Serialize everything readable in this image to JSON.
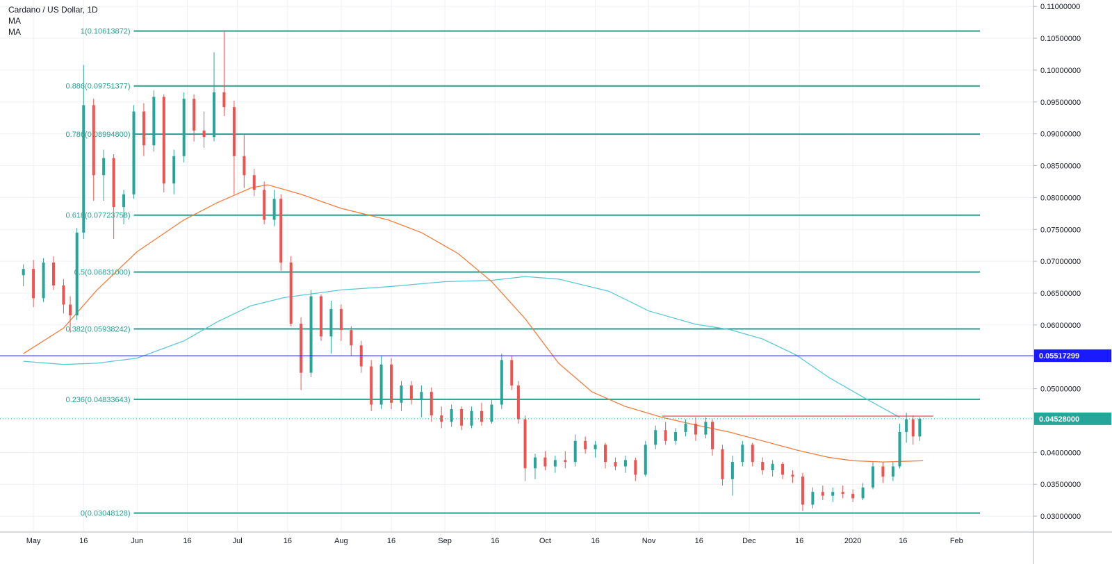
{
  "legend": {
    "title": "Cardano / US Dollar, 1D",
    "ma1": "MA",
    "ma2": "MA"
  },
  "colors": {
    "grid": "#eef0f4",
    "fib": "#2a9d8f",
    "bull": "#26a69a",
    "bear": "#ef5350",
    "ma_fast": "#f57c3b",
    "ma_slow": "#5bc8d8",
    "support": "#1a1aff",
    "resistance": "#e53935"
  },
  "chart_data": {
    "type": "candlestick",
    "title": "Cardano / US Dollar, 1D",
    "ylim": [
      0.0275,
      0.111
    ],
    "y_ticks": [
      "0.11000000",
      "0.10500000",
      "0.10000000",
      "0.09500000",
      "0.09000000",
      "0.08500000",
      "0.08000000",
      "0.07500000",
      "0.07000000",
      "0.06500000",
      "0.06000000",
      "0.05500000",
      "0.05000000",
      "0.04000000",
      "0.03500000",
      "0.03000000"
    ],
    "x_ticks": [
      {
        "label": "May",
        "date": "2019-05-01"
      },
      {
        "label": "16",
        "date": "2019-05-16"
      },
      {
        "label": "Jun",
        "date": "2019-06-01"
      },
      {
        "label": "16",
        "date": "2019-06-16"
      },
      {
        "label": "Jul",
        "date": "2019-07-01"
      },
      {
        "label": "16",
        "date": "2019-07-16"
      },
      {
        "label": "Aug",
        "date": "2019-08-01"
      },
      {
        "label": "16",
        "date": "2019-08-16"
      },
      {
        "label": "Sep",
        "date": "2019-09-01"
      },
      {
        "label": "16",
        "date": "2019-09-16"
      },
      {
        "label": "Oct",
        "date": "2019-10-01"
      },
      {
        "label": "16",
        "date": "2019-10-16"
      },
      {
        "label": "Nov",
        "date": "2019-11-01"
      },
      {
        "label": "16",
        "date": "2019-11-16"
      },
      {
        "label": "Dec",
        "date": "2019-12-01"
      },
      {
        "label": "16",
        "date": "2019-12-16"
      },
      {
        "label": "2020",
        "date": "2020-01-01"
      },
      {
        "label": "16",
        "date": "2020-01-16"
      },
      {
        "label": "Feb",
        "date": "2020-02-01"
      }
    ],
    "fib_levels": [
      {
        "label": "1(0.10613872)",
        "value": 0.10613872
      },
      {
        "label": "0.886(0.09751377)",
        "value": 0.09751377
      },
      {
        "label": "0.786(0.08994800)",
        "value": 0.089948
      },
      {
        "label": "0.618(0.07723758)",
        "value": 0.07723758
      },
      {
        "label": "0.5(0.06831000)",
        "value": 0.06831
      },
      {
        "label": "0.382(0.05938242)",
        "value": 0.05938242
      },
      {
        "label": "0.236(0.04833643)",
        "value": 0.04833643
      },
      {
        "label": "0(0.03048128)",
        "value": 0.03048128
      }
    ],
    "support_line": {
      "value": 0.05517299,
      "label": "0.05517299"
    },
    "last_price": {
      "value": 0.04528,
      "label": "0.04528000"
    },
    "resistance_segment": {
      "value": 0.0457,
      "x_start": "2019-11-05",
      "x_end": "2020-01-25"
    },
    "ma_fast": [
      [
        "2019-04-28",
        0.0555
      ],
      [
        "2019-05-10",
        0.0595
      ],
      [
        "2019-05-20",
        0.0655
      ],
      [
        "2019-06-01",
        0.0715
      ],
      [
        "2019-06-15",
        0.0765
      ],
      [
        "2019-06-25",
        0.0792
      ],
      [
        "2019-07-05",
        0.0815
      ],
      [
        "2019-07-10",
        0.082
      ],
      [
        "2019-07-20",
        0.0805
      ],
      [
        "2019-08-01",
        0.0783
      ],
      [
        "2019-08-15",
        0.0765
      ],
      [
        "2019-08-25",
        0.0745
      ],
      [
        "2019-09-05",
        0.0712
      ],
      [
        "2019-09-15",
        0.0668
      ],
      [
        "2019-09-25",
        0.061
      ],
      [
        "2019-10-05",
        0.054
      ],
      [
        "2019-10-15",
        0.0495
      ],
      [
        "2019-10-25",
        0.0472
      ],
      [
        "2019-11-05",
        0.0455
      ],
      [
        "2019-11-15",
        0.0443
      ],
      [
        "2019-11-25",
        0.0432
      ],
      [
        "2019-12-05",
        0.0418
      ],
      [
        "2019-12-15",
        0.0404
      ],
      [
        "2019-12-25",
        0.0392
      ],
      [
        "2020-01-01",
        0.0387
      ],
      [
        "2020-01-10",
        0.0385
      ],
      [
        "2020-01-22",
        0.0387
      ]
    ],
    "ma_slow": [
      [
        "2019-04-28",
        0.0543
      ],
      [
        "2019-05-10",
        0.0538
      ],
      [
        "2019-05-20",
        0.054
      ],
      [
        "2019-06-01",
        0.0548
      ],
      [
        "2019-06-15",
        0.0575
      ],
      [
        "2019-06-25",
        0.0605
      ],
      [
        "2019-07-05",
        0.063
      ],
      [
        "2019-07-15",
        0.0643
      ],
      [
        "2019-08-01",
        0.0655
      ],
      [
        "2019-08-15",
        0.066
      ],
      [
        "2019-09-01",
        0.0668
      ],
      [
        "2019-09-15",
        0.067
      ],
      [
        "2019-09-25",
        0.0676
      ],
      [
        "2019-10-05",
        0.0672
      ],
      [
        "2019-10-20",
        0.0653
      ],
      [
        "2019-11-01",
        0.0622
      ],
      [
        "2019-11-15",
        0.0601
      ],
      [
        "2019-11-25",
        0.0593
      ],
      [
        "2019-12-05",
        0.0578
      ],
      [
        "2019-12-15",
        0.0553
      ],
      [
        "2019-12-25",
        0.0517
      ],
      [
        "2020-01-05",
        0.0484
      ],
      [
        "2020-01-15",
        0.0455
      ]
    ],
    "candles": [
      {
        "d": "2019-04-28",
        "o": 0.0678,
        "h": 0.0695,
        "l": 0.0661,
        "c": 0.0688
      },
      {
        "d": "2019-05-01",
        "o": 0.0688,
        "h": 0.0702,
        "l": 0.0628,
        "c": 0.0642
      },
      {
        "d": "2019-05-04",
        "o": 0.0642,
        "h": 0.0705,
        "l": 0.0636,
        "c": 0.0698
      },
      {
        "d": "2019-05-07",
        "o": 0.0698,
        "h": 0.0708,
        "l": 0.0655,
        "c": 0.0662
      },
      {
        "d": "2019-05-10",
        "o": 0.0662,
        "h": 0.0672,
        "l": 0.0618,
        "c": 0.0632
      },
      {
        "d": "2019-05-12",
        "o": 0.0632,
        "h": 0.0645,
        "l": 0.0588,
        "c": 0.0615
      },
      {
        "d": "2019-05-14",
        "o": 0.0615,
        "h": 0.0752,
        "l": 0.0608,
        "c": 0.0745
      },
      {
        "d": "2019-05-16",
        "o": 0.0745,
        "h": 0.1008,
        "l": 0.0735,
        "c": 0.0945
      },
      {
        "d": "2019-05-19",
        "o": 0.0945,
        "h": 0.0955,
        "l": 0.0795,
        "c": 0.0835
      },
      {
        "d": "2019-05-22",
        "o": 0.0835,
        "h": 0.0875,
        "l": 0.0795,
        "c": 0.0862
      },
      {
        "d": "2019-05-25",
        "o": 0.0862,
        "h": 0.0868,
        "l": 0.0735,
        "c": 0.0785
      },
      {
        "d": "2019-05-28",
        "o": 0.0785,
        "h": 0.0812,
        "l": 0.0758,
        "c": 0.0805
      },
      {
        "d": "2019-05-31",
        "o": 0.0805,
        "h": 0.0945,
        "l": 0.0798,
        "c": 0.0935
      },
      {
        "d": "2019-06-03",
        "o": 0.0935,
        "h": 0.0948,
        "l": 0.0865,
        "c": 0.0882
      },
      {
        "d": "2019-06-06",
        "o": 0.0882,
        "h": 0.0968,
        "l": 0.0872,
        "c": 0.0958
      },
      {
        "d": "2019-06-09",
        "o": 0.0958,
        "h": 0.0962,
        "l": 0.0808,
        "c": 0.0822
      },
      {
        "d": "2019-06-12",
        "o": 0.0822,
        "h": 0.0875,
        "l": 0.0805,
        "c": 0.0865
      },
      {
        "d": "2019-06-15",
        "o": 0.0865,
        "h": 0.0965,
        "l": 0.0855,
        "c": 0.0955
      },
      {
        "d": "2019-06-18",
        "o": 0.0955,
        "h": 0.0962,
        "l": 0.0888,
        "c": 0.0905
      },
      {
        "d": "2019-06-21",
        "o": 0.0905,
        "h": 0.0935,
        "l": 0.0878,
        "c": 0.0895
      },
      {
        "d": "2019-06-24",
        "o": 0.0895,
        "h": 0.1028,
        "l": 0.0888,
        "c": 0.0965
      },
      {
        "d": "2019-06-27",
        "o": 0.0965,
        "h": 0.1061,
        "l": 0.0928,
        "c": 0.0942
      },
      {
        "d": "2019-06-30",
        "o": 0.0942,
        "h": 0.0952,
        "l": 0.0805,
        "c": 0.0865
      },
      {
        "d": "2019-07-03",
        "o": 0.0865,
        "h": 0.0898,
        "l": 0.0815,
        "c": 0.0835
      },
      {
        "d": "2019-07-06",
        "o": 0.0835,
        "h": 0.0845,
        "l": 0.0802,
        "c": 0.0812
      },
      {
        "d": "2019-07-09",
        "o": 0.0812,
        "h": 0.0825,
        "l": 0.0758,
        "c": 0.0765
      },
      {
        "d": "2019-07-12",
        "o": 0.0765,
        "h": 0.0812,
        "l": 0.0755,
        "c": 0.0798
      },
      {
        "d": "2019-07-14",
        "o": 0.0798,
        "h": 0.0805,
        "l": 0.0685,
        "c": 0.0698
      },
      {
        "d": "2019-07-17",
        "o": 0.0698,
        "h": 0.0708,
        "l": 0.0598,
        "c": 0.0602
      },
      {
        "d": "2019-07-20",
        "o": 0.0602,
        "h": 0.0612,
        "l": 0.0498,
        "c": 0.0525
      },
      {
        "d": "2019-07-23",
        "o": 0.0525,
        "h": 0.0655,
        "l": 0.0518,
        "c": 0.0645
      },
      {
        "d": "2019-07-26",
        "o": 0.0645,
        "h": 0.0648,
        "l": 0.0575,
        "c": 0.0582
      },
      {
        "d": "2019-07-29",
        "o": 0.0582,
        "h": 0.0638,
        "l": 0.0555,
        "c": 0.0625
      },
      {
        "d": "2019-08-01",
        "o": 0.0625,
        "h": 0.0632,
        "l": 0.0575,
        "c": 0.0592
      },
      {
        "d": "2019-08-04",
        "o": 0.0592,
        "h": 0.0598,
        "l": 0.0552,
        "c": 0.0568
      },
      {
        "d": "2019-08-07",
        "o": 0.0568,
        "h": 0.0575,
        "l": 0.0525,
        "c": 0.0535
      },
      {
        "d": "2019-08-10",
        "o": 0.0535,
        "h": 0.0545,
        "l": 0.0465,
        "c": 0.0475
      },
      {
        "d": "2019-08-13",
        "o": 0.0475,
        "h": 0.0552,
        "l": 0.0468,
        "c": 0.0538
      },
      {
        "d": "2019-08-16",
        "o": 0.0538,
        "h": 0.0548,
        "l": 0.0468,
        "c": 0.0478
      },
      {
        "d": "2019-08-19",
        "o": 0.0478,
        "h": 0.0512,
        "l": 0.0465,
        "c": 0.0505
      },
      {
        "d": "2019-08-22",
        "o": 0.0505,
        "h": 0.0512,
        "l": 0.0475,
        "c": 0.0482
      },
      {
        "d": "2019-08-25",
        "o": 0.0482,
        "h": 0.0505,
        "l": 0.0455,
        "c": 0.0495
      },
      {
        "d": "2019-08-28",
        "o": 0.0495,
        "h": 0.0502,
        "l": 0.0448,
        "c": 0.0458
      },
      {
        "d": "2019-08-31",
        "o": 0.0458,
        "h": 0.0472,
        "l": 0.0438,
        "c": 0.0448
      },
      {
        "d": "2019-09-03",
        "o": 0.0448,
        "h": 0.0475,
        "l": 0.044,
        "c": 0.0468
      },
      {
        "d": "2019-09-06",
        "o": 0.0468,
        "h": 0.0472,
        "l": 0.0435,
        "c": 0.0442
      },
      {
        "d": "2019-09-09",
        "o": 0.0442,
        "h": 0.0472,
        "l": 0.0438,
        "c": 0.0465
      },
      {
        "d": "2019-09-12",
        "o": 0.0465,
        "h": 0.0478,
        "l": 0.0442,
        "c": 0.0448
      },
      {
        "d": "2019-09-15",
        "o": 0.0448,
        "h": 0.0482,
        "l": 0.0445,
        "c": 0.0475
      },
      {
        "d": "2019-09-18",
        "o": 0.0475,
        "h": 0.0555,
        "l": 0.0468,
        "c": 0.0545
      },
      {
        "d": "2019-09-21",
        "o": 0.0545,
        "h": 0.0552,
        "l": 0.0498,
        "c": 0.0505
      },
      {
        "d": "2019-09-23",
        "o": 0.0505,
        "h": 0.0512,
        "l": 0.0445,
        "c": 0.0452
      },
      {
        "d": "2019-09-25",
        "o": 0.0452,
        "h": 0.0458,
        "l": 0.0355,
        "c": 0.0375
      },
      {
        "d": "2019-09-28",
        "o": 0.0375,
        "h": 0.0398,
        "l": 0.0358,
        "c": 0.0392
      },
      {
        "d": "2019-10-01",
        "o": 0.0392,
        "h": 0.0402,
        "l": 0.0372,
        "c": 0.0378
      },
      {
        "d": "2019-10-04",
        "o": 0.0378,
        "h": 0.0395,
        "l": 0.0368,
        "c": 0.0388
      },
      {
        "d": "2019-10-07",
        "o": 0.0388,
        "h": 0.0402,
        "l": 0.0375,
        "c": 0.0385
      },
      {
        "d": "2019-10-10",
        "o": 0.0385,
        "h": 0.0428,
        "l": 0.0378,
        "c": 0.0418
      },
      {
        "d": "2019-10-13",
        "o": 0.0418,
        "h": 0.0425,
        "l": 0.0398,
        "c": 0.0405
      },
      {
        "d": "2019-10-16",
        "o": 0.0405,
        "h": 0.0418,
        "l": 0.0392,
        "c": 0.0412
      },
      {
        "d": "2019-10-19",
        "o": 0.0412,
        "h": 0.0415,
        "l": 0.0375,
        "c": 0.0385
      },
      {
        "d": "2019-10-22",
        "o": 0.0385,
        "h": 0.0392,
        "l": 0.0372,
        "c": 0.0378
      },
      {
        "d": "2019-10-25",
        "o": 0.0378,
        "h": 0.0395,
        "l": 0.0368,
        "c": 0.0388
      },
      {
        "d": "2019-10-28",
        "o": 0.0388,
        "h": 0.0392,
        "l": 0.0355,
        "c": 0.0365
      },
      {
        "d": "2019-10-31",
        "o": 0.0365,
        "h": 0.0418,
        "l": 0.0362,
        "c": 0.0412
      },
      {
        "d": "2019-11-03",
        "o": 0.0412,
        "h": 0.0442,
        "l": 0.0405,
        "c": 0.0435
      },
      {
        "d": "2019-11-06",
        "o": 0.0435,
        "h": 0.0448,
        "l": 0.0412,
        "c": 0.0418
      },
      {
        "d": "2019-11-09",
        "o": 0.0418,
        "h": 0.0438,
        "l": 0.0412,
        "c": 0.0432
      },
      {
        "d": "2019-11-12",
        "o": 0.0432,
        "h": 0.0452,
        "l": 0.0425,
        "c": 0.0445
      },
      {
        "d": "2019-11-15",
        "o": 0.0445,
        "h": 0.0455,
        "l": 0.0418,
        "c": 0.0428
      },
      {
        "d": "2019-11-18",
        "o": 0.0428,
        "h": 0.0455,
        "l": 0.0422,
        "c": 0.0448
      },
      {
        "d": "2019-11-20",
        "o": 0.0448,
        "h": 0.0452,
        "l": 0.0395,
        "c": 0.0405
      },
      {
        "d": "2019-11-23",
        "o": 0.0405,
        "h": 0.0412,
        "l": 0.0348,
        "c": 0.0358
      },
      {
        "d": "2019-11-26",
        "o": 0.0358,
        "h": 0.0395,
        "l": 0.0332,
        "c": 0.0385
      },
      {
        "d": "2019-11-29",
        "o": 0.0385,
        "h": 0.0418,
        "l": 0.0378,
        "c": 0.0412
      },
      {
        "d": "2019-12-02",
        "o": 0.0412,
        "h": 0.0415,
        "l": 0.0378,
        "c": 0.0385
      },
      {
        "d": "2019-12-05",
        "o": 0.0385,
        "h": 0.0392,
        "l": 0.0365,
        "c": 0.0372
      },
      {
        "d": "2019-12-08",
        "o": 0.0372,
        "h": 0.0388,
        "l": 0.0362,
        "c": 0.0382
      },
      {
        "d": "2019-12-11",
        "o": 0.0382,
        "h": 0.0385,
        "l": 0.0358,
        "c": 0.0365
      },
      {
        "d": "2019-12-14",
        "o": 0.0365,
        "h": 0.0372,
        "l": 0.0352,
        "c": 0.0362
      },
      {
        "d": "2019-12-17",
        "o": 0.0362,
        "h": 0.0368,
        "l": 0.0308,
        "c": 0.0318
      },
      {
        "d": "2019-12-20",
        "o": 0.0318,
        "h": 0.0345,
        "l": 0.0312,
        "c": 0.0338
      },
      {
        "d": "2019-12-23",
        "o": 0.0338,
        "h": 0.0348,
        "l": 0.0325,
        "c": 0.0332
      },
      {
        "d": "2019-12-26",
        "o": 0.0332,
        "h": 0.0345,
        "l": 0.0322,
        "c": 0.0338
      },
      {
        "d": "2019-12-29",
        "o": 0.0338,
        "h": 0.0348,
        "l": 0.0328,
        "c": 0.0335
      },
      {
        "d": "2020-01-01",
        "o": 0.0335,
        "h": 0.0342,
        "l": 0.0322,
        "c": 0.0328
      },
      {
        "d": "2020-01-04",
        "o": 0.0328,
        "h": 0.0352,
        "l": 0.0325,
        "c": 0.0345
      },
      {
        "d": "2020-01-07",
        "o": 0.0345,
        "h": 0.0385,
        "l": 0.0342,
        "c": 0.0378
      },
      {
        "d": "2020-01-10",
        "o": 0.0378,
        "h": 0.0385,
        "l": 0.0352,
        "c": 0.0362
      },
      {
        "d": "2020-01-13",
        "o": 0.0362,
        "h": 0.0385,
        "l": 0.0355,
        "c": 0.0378
      },
      {
        "d": "2020-01-15",
        "o": 0.0378,
        "h": 0.0445,
        "l": 0.0375,
        "c": 0.0432
      },
      {
        "d": "2020-01-17",
        "o": 0.0432,
        "h": 0.0462,
        "l": 0.0415,
        "c": 0.0452
      },
      {
        "d": "2020-01-19",
        "o": 0.0452,
        "h": 0.0458,
        "l": 0.0412,
        "c": 0.0425
      },
      {
        "d": "2020-01-21",
        "o": 0.0425,
        "h": 0.0455,
        "l": 0.0418,
        "c": 0.04528
      }
    ]
  }
}
